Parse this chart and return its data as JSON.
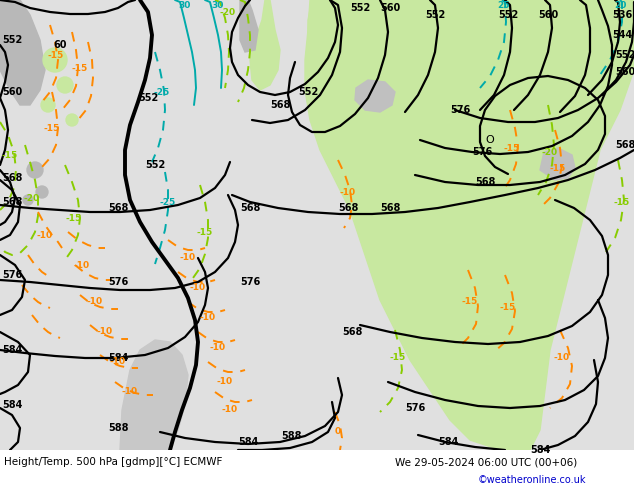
{
  "title_left": "Height/Temp. 500 hPa [gdmp][°C] ECMWF",
  "title_right": "We 29-05-2024 06:00 UTC (00+06)",
  "credit": "©weatheronline.co.uk",
  "bg_atlantic": "#e0e0e0",
  "bg_land_green": "#c8e8a0",
  "bg_land_gray": "#b8b8b8",
  "text_color": "#000000",
  "credit_color": "#0000cc"
}
